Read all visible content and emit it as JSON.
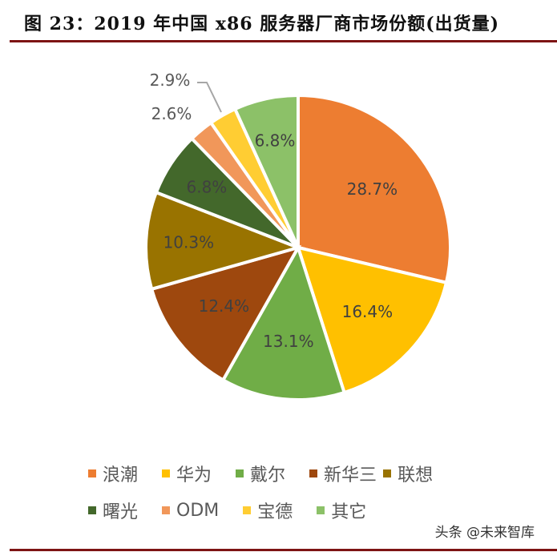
{
  "title": "图 23：2019 年中国 x86 服务器厂商市场份额(出货量)",
  "watermark": "头条 @未来智库",
  "chart_data": {
    "type": "pie",
    "title": "2019年中国x86服务器厂商市场份额(出货量)",
    "categories": [
      "浪潮",
      "华为",
      "戴尔",
      "新华三",
      "联想",
      "曙光",
      "ODM",
      "宝德",
      "其它"
    ],
    "values": [
      28.7,
      16.4,
      13.1,
      12.4,
      10.3,
      6.8,
      2.6,
      2.9,
      6.8
    ],
    "labels": [
      "28.7%",
      "16.4%",
      "13.1%",
      "12.4%",
      "10.3%",
      "6.8%",
      "2.6%",
      "2.9%",
      "6.8%"
    ],
    "colors": [
      "#ED7D31",
      "#FFC000",
      "#70AD47",
      "#9E480E",
      "#997300",
      "#43682B",
      "#F1975A",
      "#FFCD33",
      "#8CC168"
    ],
    "start_angle": "12 o'clock, clockwise",
    "legend_position": "bottom"
  },
  "legend": [
    {
      "label": "浪潮",
      "color": "#ED7D31"
    },
    {
      "label": "华为",
      "color": "#FFC000"
    },
    {
      "label": "戴尔",
      "color": "#70AD47"
    },
    {
      "label": "新华三",
      "color": "#9E480E"
    },
    {
      "label": "联想",
      "color": "#997300"
    },
    {
      "label": "曙光",
      "color": "#43682B"
    },
    {
      "label": "ODM",
      "color": "#F1975A"
    },
    {
      "label": "宝德",
      "color": "#FFCD33"
    },
    {
      "label": "其它",
      "color": "#8CC168"
    }
  ]
}
